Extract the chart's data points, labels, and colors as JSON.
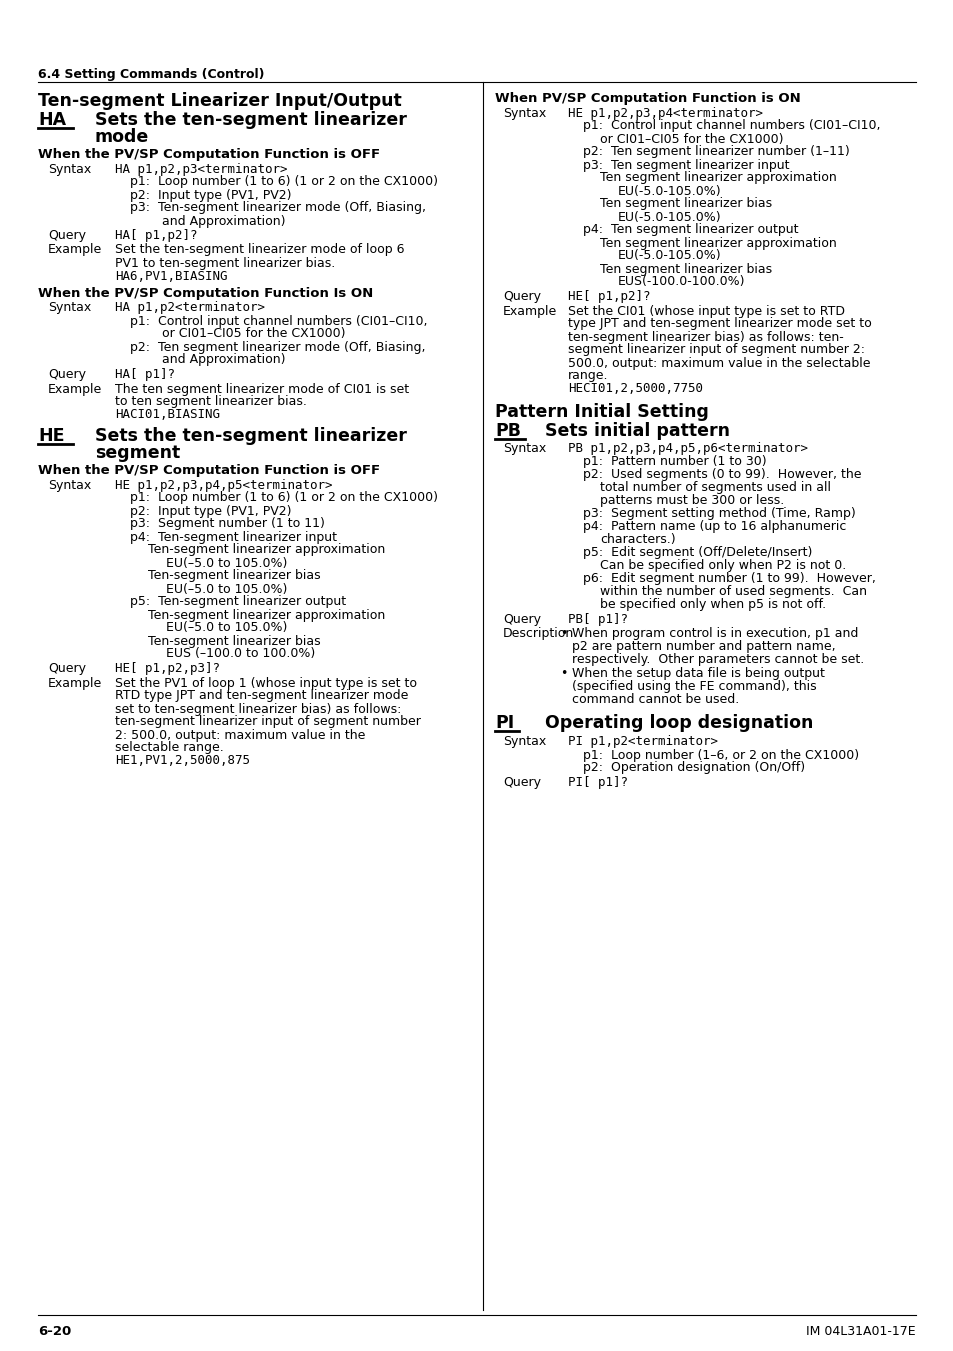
{
  "page_header": "6.4 Setting Commands (Control)",
  "footer_left": "6-20",
  "footer_right": "IM 04L31A01-17E",
  "bg_color": "#ffffff",
  "text_color": "#000000"
}
